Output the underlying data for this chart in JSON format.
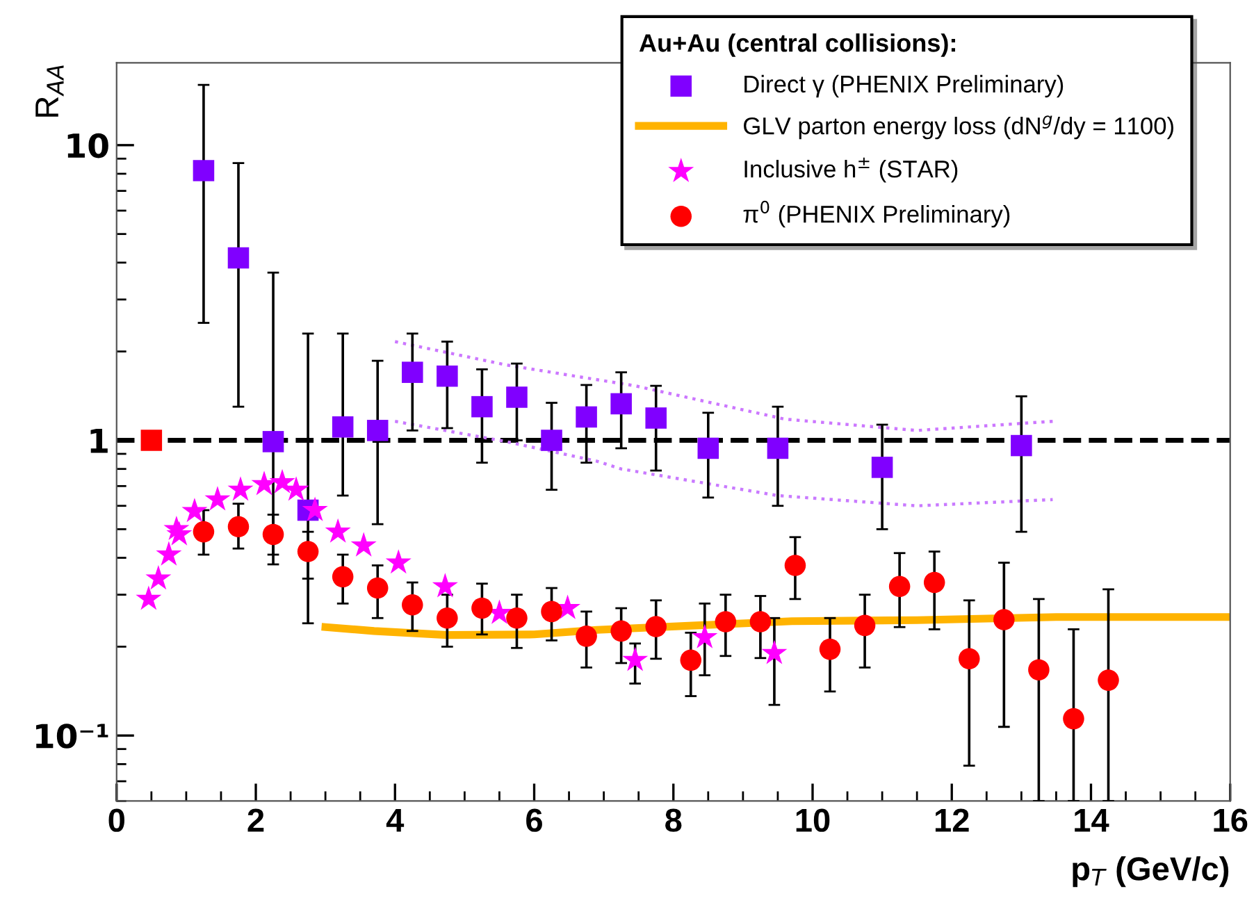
{
  "chart_data": {
    "type": "scatter",
    "log": "y",
    "xlabel": "p$_{T}$ (GeV/c)",
    "ylabel": "R$_{AA}$",
    "legend_title": "Au+Au (central collisions):",
    "legend": "top right",
    "xlim": [
      0,
      16
    ],
    "xticks": [
      0,
      2,
      4,
      6,
      8,
      10,
      12,
      14,
      16
    ],
    "ylim": [
      0.06,
      19
    ],
    "yticks": [
      {
        "value": 0.1,
        "label": "10⁻¹"
      },
      1,
      10
    ],
    "ref_lines": [
      {
        "axis": "y",
        "value": 1,
        "color": "#000000",
        "line_style": "dashed"
      }
    ],
    "series": [
      {
        "name": "Direct γ (PHENIX Preliminary)",
        "marker": "square",
        "color": "#8000ff",
        "x": [
          1.25,
          1.75,
          2.25,
          2.75,
          3.25,
          3.75,
          4.25,
          4.75,
          5.25,
          5.75,
          6.25,
          6.75,
          7.25,
          7.75,
          8.5,
          9.5,
          11,
          13
        ],
        "values": [
          8.2,
          4.15,
          0.99,
          0.58,
          1.11,
          1.08,
          1.7,
          1.65,
          1.3,
          1.4,
          1.0,
          1.2,
          1.33,
          1.19,
          0.94,
          0.94,
          0.81,
          0.96
        ],
        "errors": [
          [
            2.5,
            16
          ],
          [
            1.3,
            8.7
          ],
          [
            0.38,
            3.7
          ],
          [
            0.24,
            2.3
          ],
          [
            0.65,
            2.3
          ],
          [
            0.52,
            1.86
          ],
          [
            1.08,
            2.3
          ],
          [
            1.1,
            2.16
          ],
          [
            0.84,
            1.74
          ],
          [
            1.0,
            1.82
          ],
          [
            0.68,
            1.34
          ],
          [
            0.84,
            1.54
          ],
          [
            0.94,
            1.7
          ],
          [
            0.79,
            1.53
          ],
          [
            0.64,
            1.24
          ],
          [
            0.6,
            1.3
          ],
          [
            0.5,
            1.13
          ],
          [
            0.49,
            1.41
          ]
        ]
      },
      {
        "type": "line",
        "line_style": "dotted",
        "color": "#cc77ff",
        "x": [
          4.0,
          5.6,
          7.45,
          9.6,
          11.5,
          13.45
        ],
        "values": [
          2.16,
          1.8,
          1.53,
          1.18,
          1.08,
          1.16
        ]
      },
      {
        "type": "line",
        "line_style": "dotted",
        "color": "#c97aff",
        "x": [
          4.0,
          5.6,
          6.9,
          7.25,
          9.5,
          11.5,
          13.45
        ],
        "values": [
          1.16,
          0.99,
          0.85,
          0.8,
          0.65,
          0.6,
          0.63
        ]
      },
      {
        "name": "GLV parton energy loss (dN$^{g}$/dy = 1100)",
        "type": "line",
        "line_style": "solid",
        "color": "#ffb300",
        "x": [
          3.0,
          3.7,
          4.75,
          6.0,
          6.9,
          9.7,
          11.5,
          13.5,
          16
        ],
        "values": [
          0.233,
          0.226,
          0.219,
          0.22,
          0.228,
          0.244,
          0.246,
          0.252,
          0.252
        ]
      },
      {
        "name": "Inclusive h$^{±}$ (STAR)",
        "marker": "star",
        "color": "#ff00ff",
        "x": [
          0.46,
          0.6,
          0.75,
          0.9,
          0.86,
          1.12,
          1.45,
          1.78,
          2.12,
          2.38,
          2.58,
          2.85,
          3.18,
          3.55,
          4.05,
          4.72,
          5.5,
          6.48,
          7.45,
          8.45,
          9.45
        ],
        "values": [
          0.29,
          0.34,
          0.41,
          0.48,
          0.5,
          0.575,
          0.63,
          0.68,
          0.71,
          0.72,
          0.68,
          0.58,
          0.49,
          0.44,
          0.385,
          0.32,
          0.26,
          0.27,
          0.18,
          0.215,
          0.19
        ],
        "errors": [
          null,
          null,
          null,
          null,
          null,
          null,
          null,
          null,
          null,
          null,
          null,
          null,
          null,
          null,
          null,
          null,
          null,
          null,
          [
            0.15,
            0.205
          ],
          [
            0.16,
            0.28
          ],
          [
            0.127,
            0.25
          ]
        ]
      },
      {
        "name": "π$^{0}$ (PHENIX Preliminary)",
        "marker": "circle",
        "color": "#ff0000",
        "x": [
          1.25,
          1.75,
          2.25,
          2.75,
          3.25,
          3.75,
          4.25,
          4.75,
          5.25,
          5.75,
          6.25,
          6.75,
          7.25,
          7.75,
          8.25,
          8.75,
          9.25,
          9.75,
          10.25,
          10.75,
          11.25,
          11.75,
          12.25,
          12.75,
          13.25,
          13.75,
          14.25
        ],
        "values": [
          0.49,
          0.51,
          0.48,
          0.42,
          0.345,
          0.316,
          0.277,
          0.25,
          0.27,
          0.25,
          0.263,
          0.217,
          0.226,
          0.234,
          0.18,
          0.243,
          0.243,
          0.377,
          0.196,
          0.236,
          0.32,
          0.33,
          0.182,
          0.247,
          0.167,
          0.114,
          0.154
        ],
        "errors": [
          [
            0.41,
            0.58
          ],
          [
            0.43,
            0.61
          ],
          [
            0.41,
            0.56
          ],
          [
            0.34,
            0.49
          ],
          [
            0.28,
            0.41
          ],
          [
            0.25,
            0.377
          ],
          [
            0.226,
            0.33
          ],
          [
            0.2,
            0.3
          ],
          [
            0.22,
            0.327
          ],
          [
            0.198,
            0.3
          ],
          [
            0.21,
            0.316
          ],
          [
            0.17,
            0.263
          ],
          [
            0.176,
            0.27
          ],
          [
            0.182,
            0.287
          ],
          [
            0.136,
            0.223
          ],
          [
            0.186,
            0.3
          ],
          [
            0.183,
            0.297
          ],
          [
            0.29,
            0.47
          ],
          [
            0.141,
            0.25
          ],
          [
            0.17,
            0.3
          ],
          [
            0.233,
            0.415
          ],
          [
            0.229,
            0.42
          ],
          [
            0.079,
            0.287
          ],
          [
            0.107,
            0.385
          ],
          [
            0.06,
            0.29
          ],
          [
            0.06,
            0.229
          ],
          [
            0.06,
            0.313
          ]
        ]
      },
      {
        "marker": "square",
        "color": "#ff0000",
        "x": [
          0.5
        ],
        "values": [
          1.0
        ]
      }
    ]
  }
}
